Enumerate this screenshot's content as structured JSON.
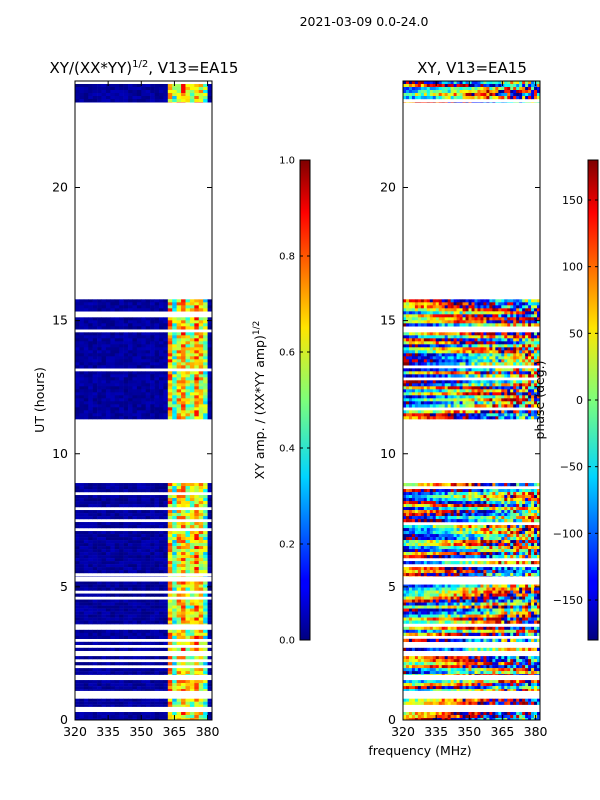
{
  "chart_data": [
    {
      "type": "heatmap",
      "suptitle": "2021-03-09 0.0-24.0",
      "title_main": "XY/(XX*YY)",
      "title_sup": "1/2",
      "title_rest": ", V13=EA15",
      "xlabel": "",
      "ylabel": "UT (hours)",
      "xlim": [
        320,
        382
      ],
      "ylim": [
        0,
        24
      ],
      "xticks": [
        320,
        335,
        350,
        365,
        380
      ],
      "yticks": [
        0,
        5,
        10,
        15,
        20
      ],
      "colorbar": {
        "label_main": "XY amp. / (XX*YY amp)",
        "label_sup": "1/2",
        "range": [
          0.0,
          1.0
        ],
        "ticks": [
          "0.0",
          "0.2",
          "0.4",
          "0.6",
          "0.8",
          "1.0"
        ]
      },
      "data_hours": [
        [
          0.0,
          0.3
        ],
        [
          0.5,
          0.8
        ],
        [
          1.1,
          1.5
        ],
        [
          1.7,
          2.4
        ],
        [
          2.6,
          3.5
        ],
        [
          3.6,
          5.2
        ],
        [
          5.4,
          8.9
        ],
        [
          11.3,
          15.8
        ],
        [
          23.2,
          24.0
        ]
      ],
      "description_values": "low amplitude (~0.0-0.1) below 362 MHz; mid-high amplitude (~0.3-0.8) bands near 363-380 MHz"
    },
    {
      "type": "heatmap",
      "title": "XY, V13=EA15",
      "xlabel": "frequency (MHz)",
      "ylabel": "",
      "xlim": [
        320,
        382
      ],
      "ylim": [
        0,
        24
      ],
      "xticks": [
        320,
        335,
        350,
        365,
        380
      ],
      "yticks": [
        0,
        5,
        10,
        15,
        20
      ],
      "colorbar": {
        "label": "phase (deg.)",
        "range": [
          -180,
          180
        ],
        "ticks": [
          "150",
          "100",
          "50",
          "0",
          "−50",
          "−100",
          "−150"
        ]
      },
      "data_hours": [
        [
          0.0,
          0.3
        ],
        [
          0.5,
          0.8
        ],
        [
          1.1,
          1.5
        ],
        [
          1.7,
          2.4
        ],
        [
          2.6,
          3.5
        ],
        [
          3.6,
          5.2
        ],
        [
          5.4,
          8.9
        ],
        [
          11.3,
          15.8
        ],
        [
          23.2,
          24.0
        ]
      ],
      "description_values": "phase varies across full -180 to 180 deg range"
    }
  ]
}
